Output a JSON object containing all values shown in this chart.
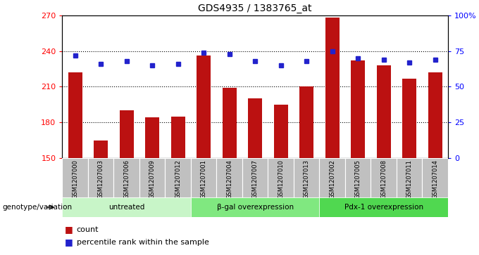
{
  "title": "GDS4935 / 1383765_at",
  "samples": [
    "GSM1207000",
    "GSM1207003",
    "GSM1207006",
    "GSM1207009",
    "GSM1207012",
    "GSM1207001",
    "GSM1207004",
    "GSM1207007",
    "GSM1207010",
    "GSM1207013",
    "GSM1207002",
    "GSM1207005",
    "GSM1207008",
    "GSM1207011",
    "GSM1207014"
  ],
  "counts": [
    222,
    165,
    190,
    184,
    185,
    236,
    209,
    200,
    195,
    210,
    268,
    232,
    228,
    217,
    222
  ],
  "percentiles": [
    72,
    66,
    68,
    65,
    66,
    74,
    73,
    68,
    65,
    68,
    75,
    70,
    69,
    67,
    69
  ],
  "groups": [
    {
      "label": "untreated",
      "start": 0,
      "end": 4,
      "color": "#c8f5c8"
    },
    {
      "label": "β-gal overexpression",
      "start": 5,
      "end": 9,
      "color": "#80e880"
    },
    {
      "label": "Pdx-1 overexpression",
      "start": 10,
      "end": 14,
      "color": "#50d850"
    }
  ],
  "bar_color": "#bb1111",
  "dot_color": "#2222cc",
  "ylim_left": [
    150,
    270
  ],
  "ylim_right": [
    0,
    100
  ],
  "yticks_left": [
    150,
    180,
    210,
    240,
    270
  ],
  "yticks_right": [
    0,
    25,
    50,
    75,
    100
  ],
  "ytick_labels_right": [
    "0",
    "25",
    "50",
    "75",
    "100%"
  ],
  "grid_values": [
    180,
    210,
    240
  ],
  "sample_bg_color": "#c0c0c0",
  "legend_count_label": "count",
  "legend_pct_label": "percentile rank within the sample",
  "genotype_label": "genotype/variation"
}
